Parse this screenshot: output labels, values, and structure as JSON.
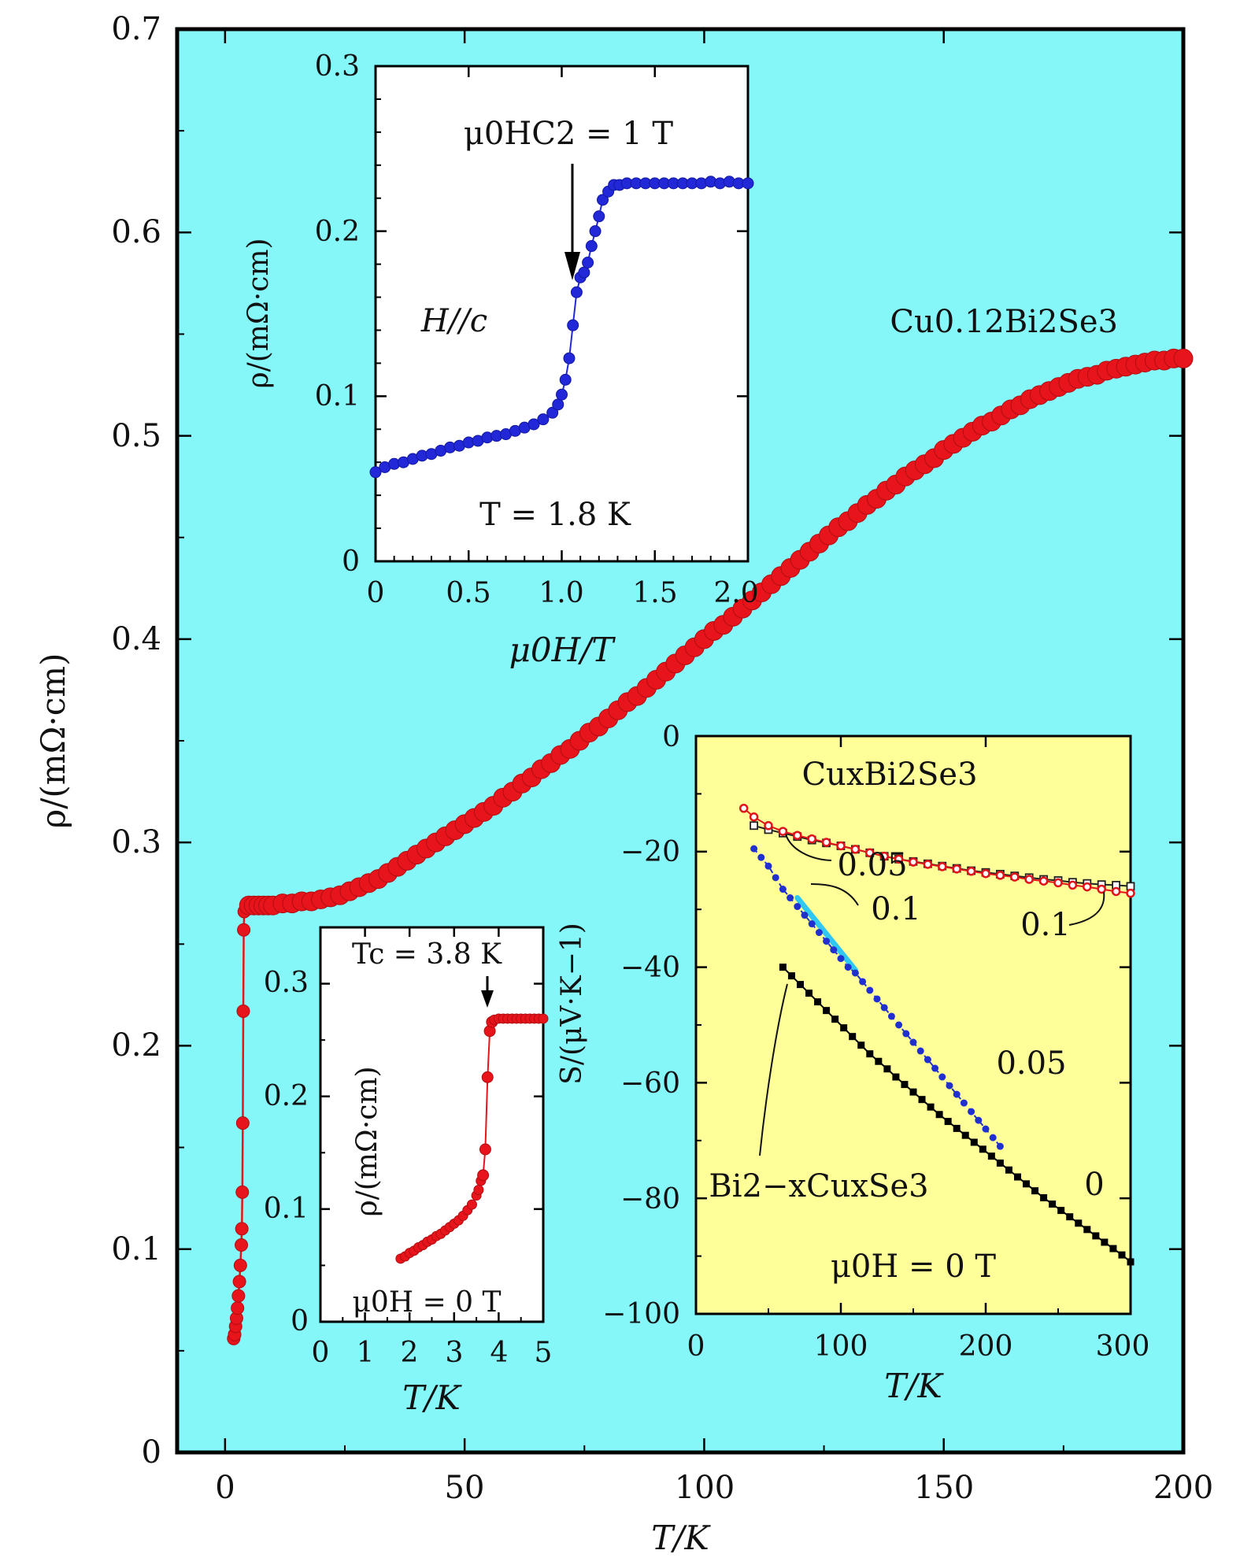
{
  "colors": {
    "main_background": "#85f7f9",
    "inset1_background": "#ffffff",
    "inset3_background": "#ffff99",
    "rho_series": "#e8141b",
    "field_series": "#2228d8",
    "seebeck_cu_x_0_1": "#e0141a",
    "seebeck_cu_x_0_05": "#222222",
    "seebeck_bi_x_0_1": "#2030d0",
    "seebeck_bi_x_0": "#000000",
    "highlight": "#30c8f0"
  },
  "chart_data": [
    {
      "id": "main",
      "type": "scatter",
      "xlabel": "T/K",
      "ylabel": "ρ/(mΩ·cm)",
      "xlim": [
        -10,
        200
      ],
      "ylim": [
        0,
        0.7
      ],
      "xticks": [
        "0",
        "50",
        "100",
        "150",
        "200"
      ],
      "yticks": [
        "0",
        "0.1",
        "0.2",
        "0.3",
        "0.4",
        "0.5",
        "0.6",
        "0.7"
      ],
      "annotations": {
        "sample": "Cu0.12Bi2Se3"
      },
      "series": [
        {
          "name": "Cu0.12Bi2Se3",
          "x": [
            1.8,
            2.0,
            2.2,
            2.4,
            2.6,
            2.8,
            3.0,
            3.2,
            3.4,
            3.5,
            3.6,
            3.7,
            3.8,
            3.9,
            4.0,
            4.5,
            5,
            6,
            7,
            8,
            9,
            10,
            12,
            14,
            16,
            18,
            20,
            22,
            24,
            26,
            28,
            30,
            32,
            34,
            36,
            38,
            40,
            42,
            44,
            46,
            48,
            50,
            52,
            54,
            56,
            58,
            60,
            62,
            64,
            66,
            68,
            70,
            72,
            74,
            76,
            78,
            80,
            82,
            84,
            86,
            88,
            90,
            92,
            94,
            96,
            98,
            100,
            102,
            104,
            106,
            108,
            110,
            112,
            114,
            116,
            118,
            120,
            122,
            124,
            126,
            128,
            130,
            132,
            134,
            136,
            138,
            140,
            142,
            144,
            146,
            148,
            150,
            152,
            154,
            156,
            158,
            160,
            162,
            164,
            166,
            168,
            170,
            172,
            174,
            176,
            178,
            180,
            182,
            184,
            186,
            188,
            190,
            192,
            194,
            196,
            198,
            200
          ],
          "y": [
            0.056,
            0.058,
            0.062,
            0.066,
            0.071,
            0.077,
            0.084,
            0.092,
            0.102,
            0.11,
            0.128,
            0.162,
            0.217,
            0.257,
            0.266,
            0.268,
            0.269,
            0.269,
            0.269,
            0.269,
            0.269,
            0.269,
            0.27,
            0.27,
            0.271,
            0.271,
            0.272,
            0.273,
            0.274,
            0.276,
            0.278,
            0.28,
            0.282,
            0.285,
            0.288,
            0.291,
            0.294,
            0.297,
            0.3,
            0.303,
            0.306,
            0.309,
            0.312,
            0.315,
            0.318,
            0.322,
            0.325,
            0.329,
            0.332,
            0.336,
            0.339,
            0.343,
            0.346,
            0.35,
            0.354,
            0.357,
            0.361,
            0.365,
            0.369,
            0.372,
            0.376,
            0.38,
            0.384,
            0.388,
            0.392,
            0.396,
            0.4,
            0.404,
            0.407,
            0.411,
            0.415,
            0.419,
            0.423,
            0.427,
            0.431,
            0.435,
            0.439,
            0.443,
            0.447,
            0.451,
            0.455,
            0.458,
            0.462,
            0.466,
            0.469,
            0.473,
            0.476,
            0.48,
            0.483,
            0.486,
            0.489,
            0.493,
            0.496,
            0.499,
            0.502,
            0.505,
            0.507,
            0.51,
            0.513,
            0.515,
            0.518,
            0.52,
            0.522,
            0.524,
            0.526,
            0.528,
            0.529,
            0.53,
            0.532,
            0.533,
            0.534,
            0.535,
            0.536,
            0.537,
            0.537,
            0.538,
            0.538
          ]
        }
      ]
    },
    {
      "id": "inset_field",
      "type": "scatter",
      "xlabel": "μ0H/T",
      "ylabel": "ρ/(mΩ·cm)",
      "xlim": [
        0,
        2.0
      ],
      "ylim": [
        0,
        0.3
      ],
      "xticks": [
        "0",
        "0.5",
        "1.0",
        "1.5",
        "2.0"
      ],
      "yticks": [
        "0",
        "0.1",
        "0.2",
        "0.3"
      ],
      "annotations": {
        "hc2": "μ0HC2 = 1 T",
        "orientation": "H//c",
        "temperature": "T = 1.8 K"
      },
      "arrow_at": {
        "x": 1.05,
        "y_from": 0.24,
        "y_to": 0.17
      },
      "series": [
        {
          "name": "H//c",
          "x": [
            0.0,
            0.05,
            0.1,
            0.15,
            0.2,
            0.25,
            0.3,
            0.35,
            0.4,
            0.45,
            0.5,
            0.55,
            0.6,
            0.65,
            0.7,
            0.75,
            0.8,
            0.85,
            0.9,
            0.95,
            0.98,
            1.0,
            1.02,
            1.04,
            1.06,
            1.08,
            1.1,
            1.12,
            1.14,
            1.16,
            1.18,
            1.2,
            1.22,
            1.25,
            1.28,
            1.31,
            1.35,
            1.4,
            1.45,
            1.5,
            1.55,
            1.6,
            1.65,
            1.7,
            1.75,
            1.8,
            1.85,
            1.9,
            1.95,
            2.0
          ],
          "y": [
            0.054,
            0.057,
            0.059,
            0.06,
            0.062,
            0.064,
            0.065,
            0.067,
            0.069,
            0.07,
            0.072,
            0.073,
            0.075,
            0.076,
            0.077,
            0.079,
            0.081,
            0.083,
            0.086,
            0.09,
            0.095,
            0.101,
            0.11,
            0.123,
            0.143,
            0.163,
            0.172,
            0.175,
            0.181,
            0.191,
            0.2,
            0.209,
            0.219,
            0.224,
            0.228,
            0.228,
            0.229,
            0.229,
            0.229,
            0.229,
            0.229,
            0.229,
            0.229,
            0.229,
            0.229,
            0.23,
            0.229,
            0.23,
            0.229,
            0.229
          ]
        }
      ]
    },
    {
      "id": "inset_lowT",
      "type": "scatter",
      "xlabel": "T/K",
      "ylabel": "ρ/(mΩ·cm)",
      "xlim": [
        0,
        5
      ],
      "ylim": [
        0,
        0.35
      ],
      "xticks": [
        "0",
        "1",
        "2",
        "3",
        "4",
        "5"
      ],
      "yticks": [
        "0",
        "0.1",
        "0.2",
        "0.3"
      ],
      "annotations": {
        "tc": "Tc = 3.8 K",
        "field": "μ0H = 0 T"
      },
      "arrow_at": {
        "x": 3.75,
        "y_from": 0.325,
        "y_to": 0.28
      },
      "series": [
        {
          "name": "μ0H = 0 T",
          "x": [
            1.8,
            1.9,
            2.0,
            2.1,
            2.2,
            2.3,
            2.4,
            2.5,
            2.6,
            2.7,
            2.8,
            2.9,
            3.0,
            3.1,
            3.2,
            3.3,
            3.4,
            3.5,
            3.55,
            3.6,
            3.65,
            3.7,
            3.75,
            3.8,
            3.85,
            3.9,
            4.0,
            4.1,
            4.2,
            4.3,
            4.4,
            4.5,
            4.6,
            4.7,
            4.8,
            4.9,
            5.0
          ],
          "y": [
            0.056,
            0.058,
            0.061,
            0.063,
            0.066,
            0.068,
            0.071,
            0.073,
            0.076,
            0.078,
            0.081,
            0.084,
            0.087,
            0.09,
            0.094,
            0.099,
            0.104,
            0.112,
            0.117,
            0.125,
            0.13,
            0.153,
            0.217,
            0.258,
            0.266,
            0.268,
            0.269,
            0.269,
            0.269,
            0.269,
            0.269,
            0.269,
            0.269,
            0.269,
            0.269,
            0.269,
            0.269
          ]
        }
      ]
    },
    {
      "id": "inset_seebeck",
      "type": "line",
      "xlabel": "T/K",
      "ylabel": "S/(μV·K−1)",
      "xlim": [
        0,
        300
      ],
      "ylim": [
        -100,
        0
      ],
      "xticks": [
        "0",
        "100",
        "200",
        "300"
      ],
      "yticks": [
        "0",
        "−20",
        "−40",
        "−60",
        "−80",
        "−100"
      ],
      "annotations": {
        "group_cu": "CuxBi2Se3",
        "group_bi": "Bi2−xCuxSe3",
        "field": "μ0H = 0 T",
        "label_cu_0_05": "0.05",
        "label_cu_0_1": "0.1",
        "label_bi_0_1": "0.1",
        "label_bi_0_05": "0.05",
        "label_bi_0": "0"
      },
      "series": [
        {
          "name": "CuxBi2Se3 x=0.1",
          "x": [
            33,
            40,
            50,
            60,
            70,
            80,
            90,
            100,
            110,
            120,
            130,
            140,
            150,
            160,
            170,
            180,
            190,
            200,
            210,
            220,
            230,
            240,
            250,
            260,
            270,
            280,
            290,
            300
          ],
          "y": [
            -12.5,
            -14,
            -15.5,
            -16.5,
            -17.2,
            -17.8,
            -18.4,
            -19,
            -19.6,
            -20.2,
            -20.8,
            -21.3,
            -21.8,
            -22.2,
            -22.6,
            -23,
            -23.4,
            -23.8,
            -24.1,
            -24.4,
            -24.8,
            -25.1,
            -25.4,
            -25.8,
            -26.1,
            -26.5,
            -26.9,
            -27.2
          ]
        },
        {
          "name": "CuxBi2Se3 x=0.05",
          "x": [
            40,
            50,
            60,
            70,
            80,
            90,
            100,
            110,
            120,
            130,
            140,
            150,
            160,
            170,
            180,
            190,
            200,
            210,
            220,
            230,
            240,
            250,
            260,
            270,
            280,
            290,
            300
          ],
          "y": [
            -15.5,
            -16.2,
            -16.8,
            -17.4,
            -18,
            -18.5,
            -19,
            -19.6,
            -20.2,
            -20.8,
            -21.3,
            -21.7,
            -22.1,
            -22.5,
            -22.9,
            -23.3,
            -23.6,
            -23.9,
            -24.2,
            -24.5,
            -24.8,
            -25,
            -25.3,
            -25.5,
            -25.7,
            -25.8,
            -26
          ]
        },
        {
          "name": "Bi2−xCuxSe3 x=0.1",
          "x": [
            40,
            45,
            50,
            55,
            60,
            65,
            70,
            75,
            80,
            85,
            90,
            95,
            100,
            105,
            110,
            115,
            120,
            125,
            130,
            135,
            140,
            145,
            150,
            155,
            160,
            165,
            170,
            175,
            180,
            185,
            190,
            195,
            200,
            205,
            210
          ],
          "y": [
            -19.5,
            -21,
            -22.5,
            -24.5,
            -26.5,
            -28,
            -29.5,
            -31,
            -32.5,
            -34,
            -35.5,
            -37,
            -38.5,
            -40,
            -41,
            -42.5,
            -44,
            -45.5,
            -47,
            -48.5,
            -50,
            -51.5,
            -53,
            -54.5,
            -56,
            -57.5,
            -59,
            -60.5,
            -62,
            -63.5,
            -65,
            -66.5,
            -68,
            -69.5,
            -71
          ]
        },
        {
          "name": "Bi2−xCuxSe3 x=0",
          "x": [
            60,
            66,
            72,
            78,
            84,
            90,
            96,
            102,
            108,
            114,
            120,
            126,
            132,
            138,
            144,
            150,
            156,
            162,
            168,
            174,
            180,
            186,
            192,
            198,
            204,
            210,
            216,
            222,
            228,
            234,
            240,
            246,
            252,
            258,
            264,
            270,
            276,
            282,
            288,
            294,
            300
          ],
          "y": [
            -40,
            -41.5,
            -43,
            -44.5,
            -46,
            -47.5,
            -49,
            -50.5,
            -52,
            -53.5,
            -55,
            -56.3,
            -57.6,
            -59,
            -60.3,
            -61.6,
            -62.9,
            -64.2,
            -65.5,
            -66.7,
            -67.9,
            -69.1,
            -70.3,
            -71.5,
            -72.7,
            -73.9,
            -75.1,
            -76.3,
            -77.5,
            -78.7,
            -79.9,
            -81,
            -82.1,
            -83.2,
            -84.3,
            -85.4,
            -86.5,
            -87.6,
            -88.7,
            -89.8,
            -91
          ]
        }
      ]
    }
  ]
}
